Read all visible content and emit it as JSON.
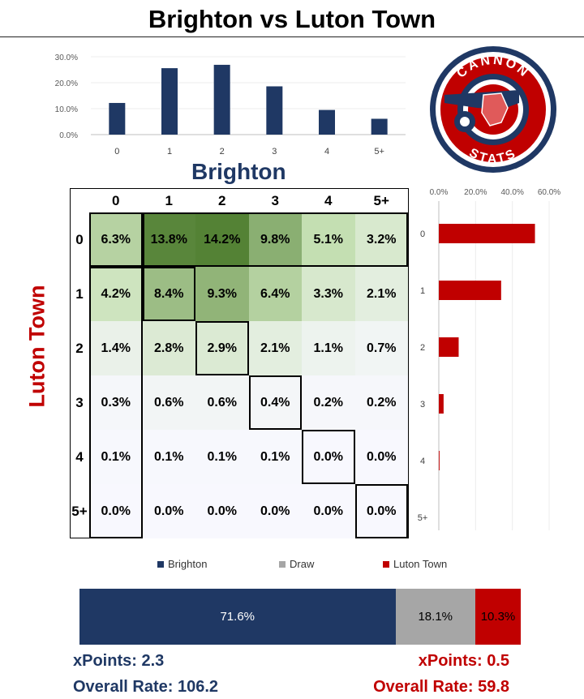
{
  "title": "Brighton vs Luton Town",
  "colors": {
    "home": "#1f3864",
    "away": "#c00000",
    "draw": "#a6a6a6"
  },
  "home_team": "Brighton",
  "away_team": "Luton Town",
  "chart_data": [
    {
      "id": "home-goals",
      "type": "bar",
      "categories": [
        "0",
        "1",
        "2",
        "3",
        "4",
        "5+"
      ],
      "values": [
        12.2,
        25.6,
        26.9,
        18.6,
        9.5,
        6.1
      ],
      "yticks": [
        "0.0%",
        "10.0%",
        "20.0%",
        "30.0%"
      ],
      "ylim": [
        0,
        30
      ],
      "color": "#1f3864"
    },
    {
      "id": "away-goals",
      "type": "bar",
      "orientation": "horizontal",
      "categories": [
        "0",
        "1",
        "2",
        "3",
        "4",
        "5+"
      ],
      "values": [
        52.3,
        33.9,
        10.8,
        2.6,
        0.4,
        0.0
      ],
      "xticks": [
        "0.0%",
        "20.0%",
        "40.0%",
        "60.0%"
      ],
      "xlim": [
        0,
        60
      ],
      "color": "#c00000"
    },
    {
      "id": "score-matrix",
      "type": "heatmap",
      "x_labels": [
        "0",
        "1",
        "2",
        "3",
        "4",
        "5+"
      ],
      "y_labels": [
        "0",
        "1",
        "2",
        "3",
        "4",
        "5+"
      ],
      "values": [
        [
          6.3,
          13.8,
          14.2,
          9.8,
          5.1,
          3.2
        ],
        [
          4.2,
          8.4,
          9.3,
          6.4,
          3.3,
          2.1
        ],
        [
          1.4,
          2.8,
          2.9,
          2.1,
          1.1,
          0.7
        ],
        [
          0.3,
          0.6,
          0.6,
          0.4,
          0.2,
          0.2
        ],
        [
          0.1,
          0.1,
          0.1,
          0.1,
          0.0,
          0.0
        ],
        [
          0.0,
          0.0,
          0.0,
          0.0,
          0.0,
          0.0
        ]
      ],
      "labels": [
        [
          "6.3%",
          "13.8%",
          "14.2%",
          "9.8%",
          "5.1%",
          "3.2%"
        ],
        [
          "4.2%",
          "8.4%",
          "9.3%",
          "6.4%",
          "3.3%",
          "2.1%"
        ],
        [
          "1.4%",
          "2.8%",
          "2.9%",
          "2.1%",
          "1.1%",
          "0.7%"
        ],
        [
          "0.3%",
          "0.6%",
          "0.6%",
          "0.4%",
          "0.2%",
          "0.2%"
        ],
        [
          "0.1%",
          "0.1%",
          "0.1%",
          "0.1%",
          "0.0%",
          "0.0%"
        ],
        [
          "0.0%",
          "0.0%",
          "0.0%",
          "0.0%",
          "0.0%",
          "0.0%"
        ]
      ]
    },
    {
      "id": "outcome",
      "type": "bar",
      "orientation": "stacked-horizontal",
      "series": [
        {
          "name": "Brighton",
          "value": 71.6,
          "label": "71.6%",
          "color": "#1f3864"
        },
        {
          "name": "Draw",
          "value": 18.1,
          "label": "18.1%",
          "color": "#a6a6a6"
        },
        {
          "name": "Luton Town",
          "value": 10.3,
          "label": "10.3%",
          "color": "#c00000"
        }
      ]
    }
  ],
  "stats": {
    "home_xpoints": "xPoints: 2.3",
    "home_rate": "Overall Rate: 106.2",
    "away_xpoints": "xPoints: 0.5",
    "away_rate": "Overall Rate: 59.8"
  },
  "logo": {
    "top_text": "CANNON",
    "bottom_text": "STATS"
  }
}
